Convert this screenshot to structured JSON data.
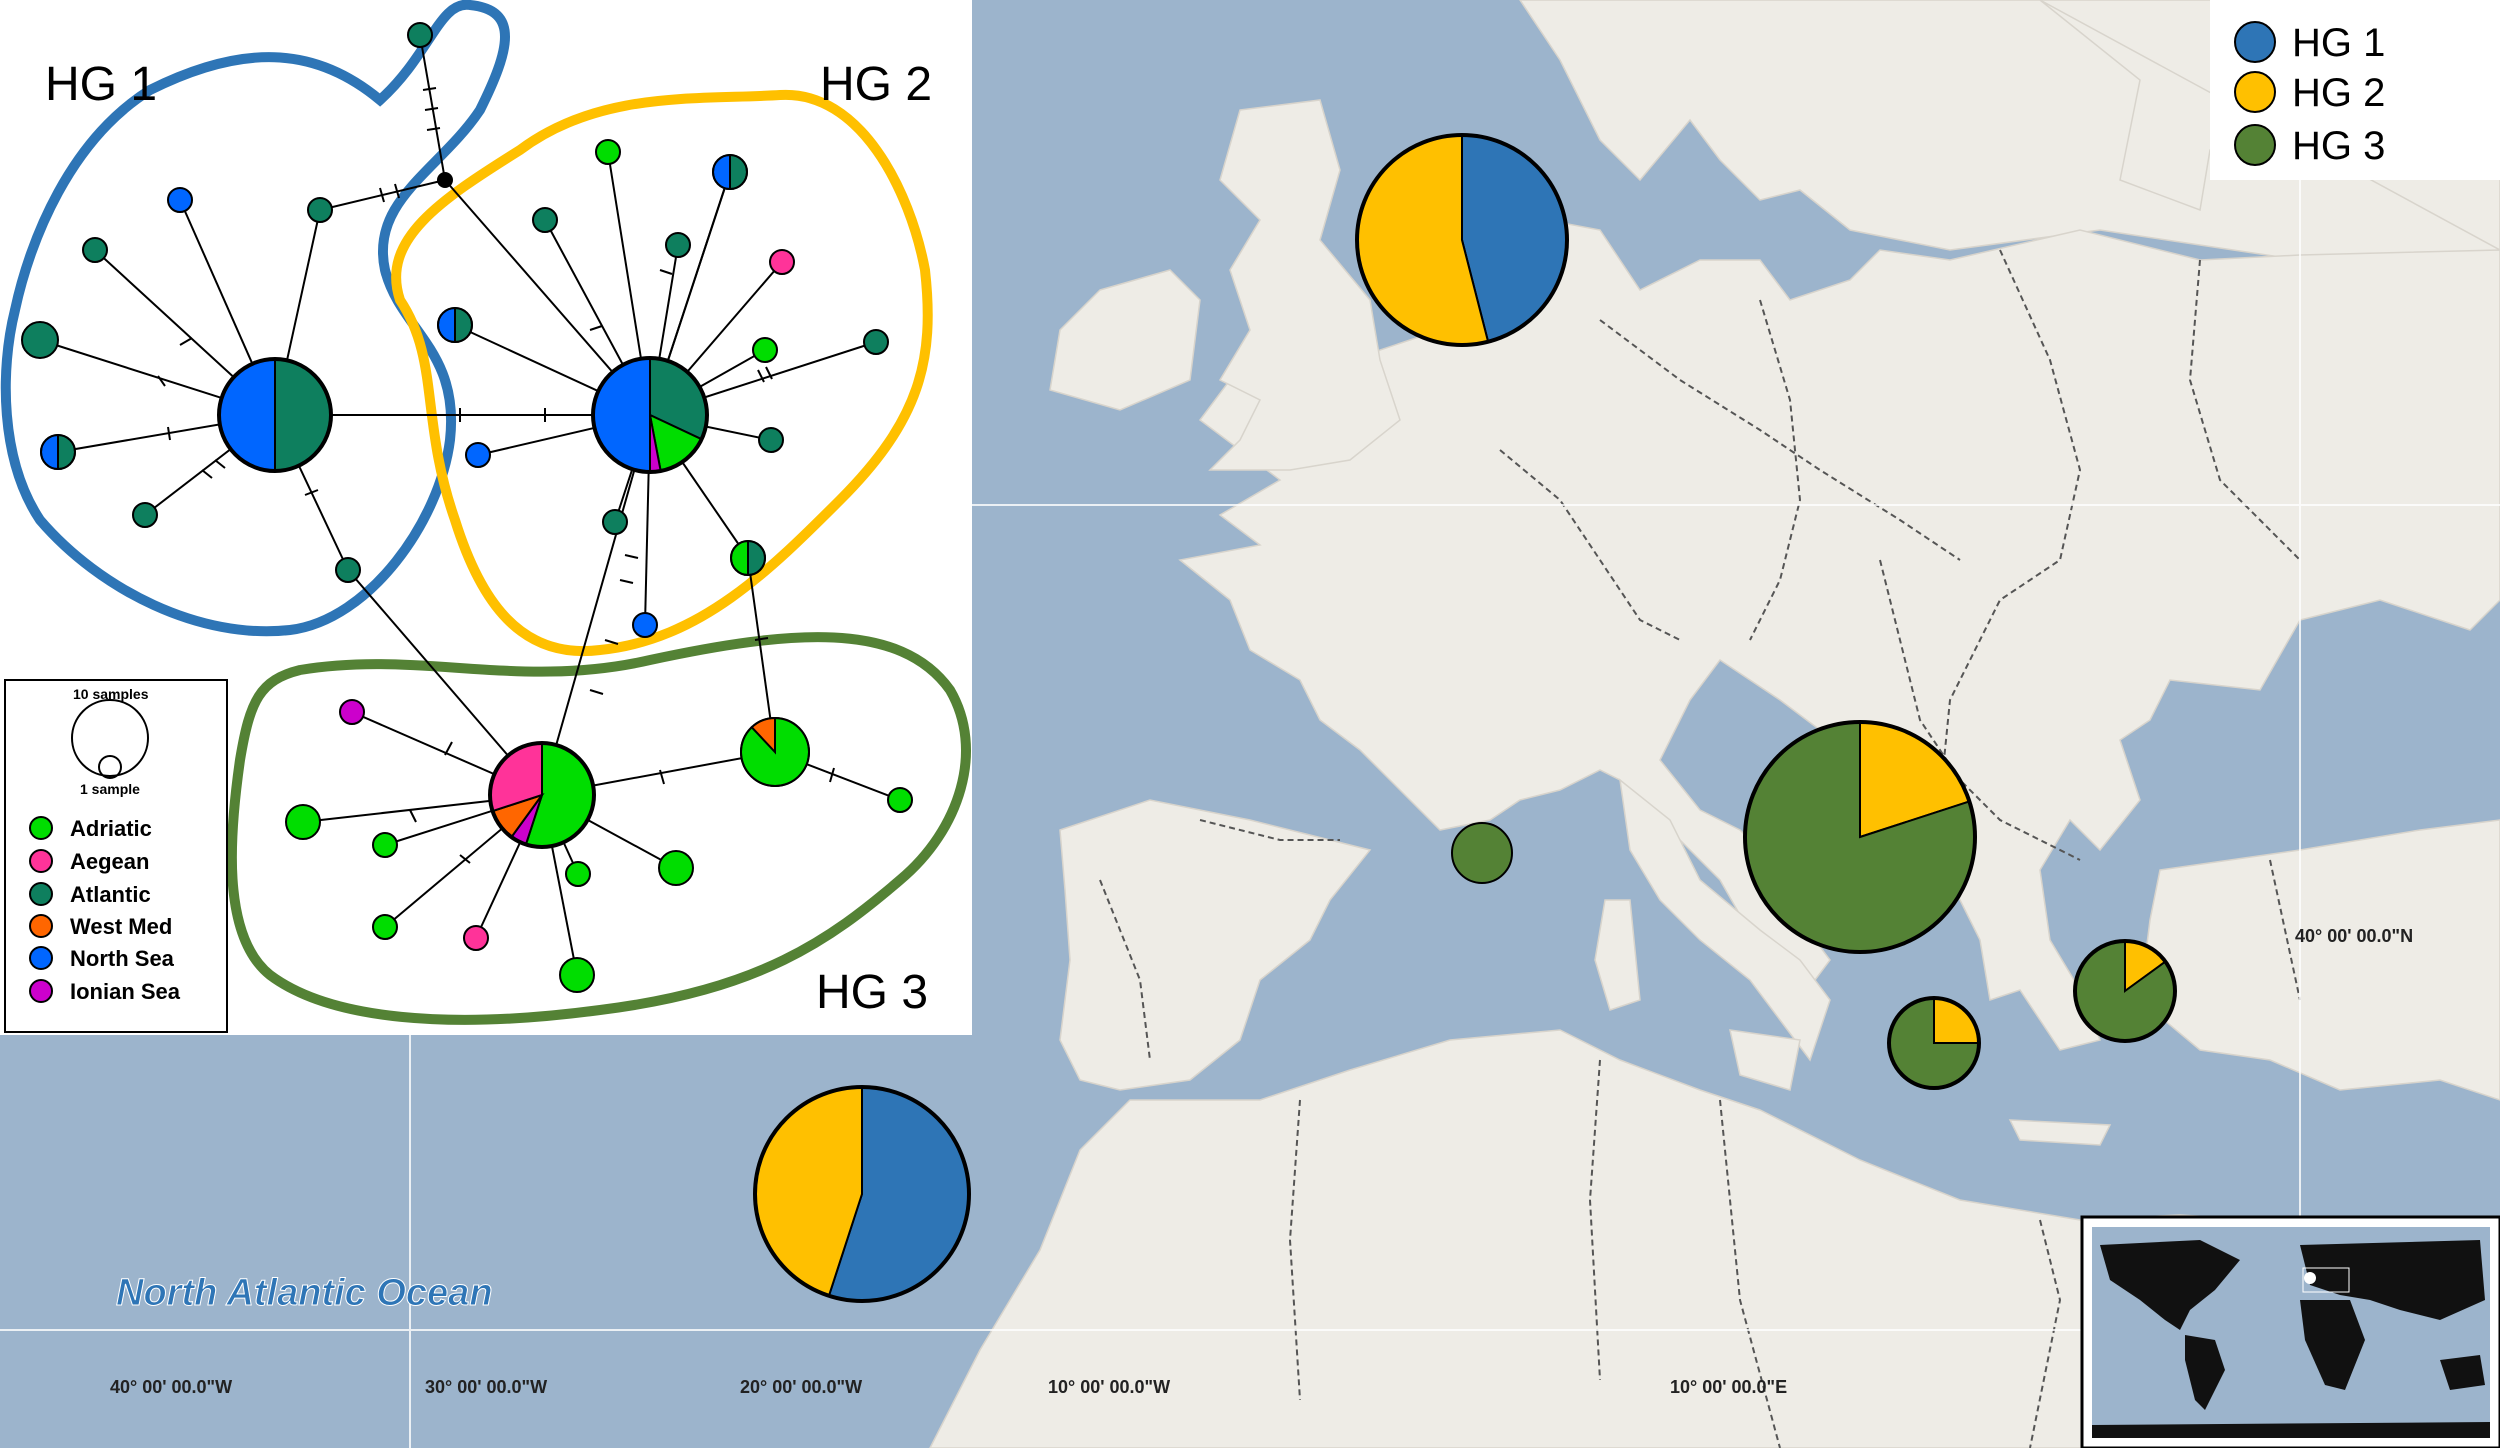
{
  "map": {
    "ocean_label": "North Atlantic Ocean",
    "coordinates": {
      "lon_40w": "40° 00' 00.0\"W",
      "lon_30w": "30° 00' 00.0\"W",
      "lon_20w": "20° 00' 00.0\"W",
      "lon_10w": "10° 00' 00.0\"W",
      "lon_10e": "10° 00' 00.0\"E",
      "lat_40n": "40° 00' 00.0\"N"
    }
  },
  "legend_top_right": {
    "items": [
      {
        "label": "HG 1",
        "color": "#2E75B6"
      },
      {
        "label": "HG 2",
        "color": "#FFC000"
      },
      {
        "label": "HG 3",
        "color": "#548235"
      }
    ]
  },
  "network": {
    "group_labels": {
      "hg1": "HG 1",
      "hg2": "HG 2",
      "hg3": "HG 3"
    },
    "group_colors": {
      "hg1": "#2E75B6",
      "hg2": "#FFC000",
      "hg3": "#548235"
    },
    "size_legend": {
      "large": "10 samples",
      "small": "1 sample"
    },
    "regions": [
      {
        "name": "Adriatic",
        "color": "#00DD00"
      },
      {
        "name": "Aegean",
        "color": "#FF3399"
      },
      {
        "name": "Atlantic",
        "color": "#0E7F5E"
      },
      {
        "name": "West Med",
        "color": "#FF6600"
      },
      {
        "name": "North Sea",
        "color": "#0066FF"
      },
      {
        "name": "Ionian Sea",
        "color": "#CC00CC"
      }
    ]
  },
  "sites": [
    {
      "id": "north-sea",
      "hg1": 0.46,
      "hg2": 0.54,
      "hg3": 0
    },
    {
      "id": "atlantic-portugal",
      "hg1": 0.55,
      "hg2": 0.45,
      "hg3": 0
    },
    {
      "id": "gulf-of-lion",
      "hg1": 0,
      "hg2": 0,
      "hg3": 1
    },
    {
      "id": "adriatic",
      "hg1": 0,
      "hg2": 0.2,
      "hg3": 0.8
    },
    {
      "id": "ionian-sicily",
      "hg1": 0,
      "hg2": 0.25,
      "hg3": 0.75
    },
    {
      "id": "aegean",
      "hg1": 0,
      "hg2": 0.15,
      "hg3": 0.85
    }
  ]
}
